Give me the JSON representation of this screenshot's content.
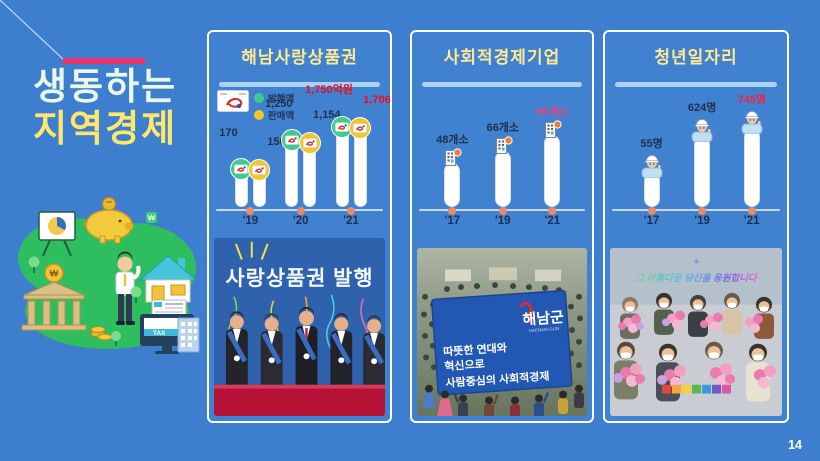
{
  "page": {
    "number": "14"
  },
  "header": {
    "line1": "생동하는",
    "line2": "지역경제",
    "accent_color": "#E8336E"
  },
  "panels": [
    {
      "title": "해남사랑상품권",
      "photo": {
        "overlay": "사랑상품권 발행"
      }
    },
    {
      "title": "사회적경제기업",
      "photo": {
        "banner_logo": "해남군",
        "banner_logo_en": "HAENAM-GUN",
        "lines": [
          "따뜻한 연대와",
          "혁신으로",
          "사람중심의 사회적경제"
        ]
      }
    },
    {
      "title": "청년일자리",
      "photo": {
        "overlay": "그 아름다운 당신을 응원합니다"
      }
    }
  ],
  "chart_data": [
    {
      "type": "bar",
      "title": "해남사랑상품권",
      "categories": [
        "'19",
        "'20",
        "'21"
      ],
      "series": [
        {
          "name": "발행액",
          "color": "#41C98F",
          "values": [
            170,
            1250,
            1750
          ],
          "labels": [
            "170",
            "1,250",
            "1,750억원"
          ]
        },
        {
          "name": "판매액",
          "color": "#F3C52F",
          "values": [
            150,
            1154,
            1706
          ],
          "labels": [
            "150",
            "1,154",
            "1,706"
          ]
        }
      ],
      "unit": "억원",
      "highlight_category": "'21",
      "highlight_color": "#E8101E",
      "legend_position": "top-left",
      "grid": false
    },
    {
      "type": "bar",
      "title": "사회적경제기업",
      "categories": [
        "'17",
        "'19",
        "'21"
      ],
      "values": [
        48,
        66,
        90
      ],
      "labels": [
        "48개소",
        "66개소",
        "90개소"
      ],
      "unit": "개소",
      "highlight_category": "'21",
      "highlight_color": "#F0417A",
      "grid": false
    },
    {
      "type": "bar",
      "title": "청년일자리",
      "categories": [
        "'17",
        "'19",
        "'21"
      ],
      "values": [
        55,
        624,
        745
      ],
      "labels": [
        "55명",
        "624명",
        "745명"
      ],
      "unit": "명",
      "highlight_category": "'21",
      "highlight_color": "#F02349",
      "grid": false
    }
  ]
}
